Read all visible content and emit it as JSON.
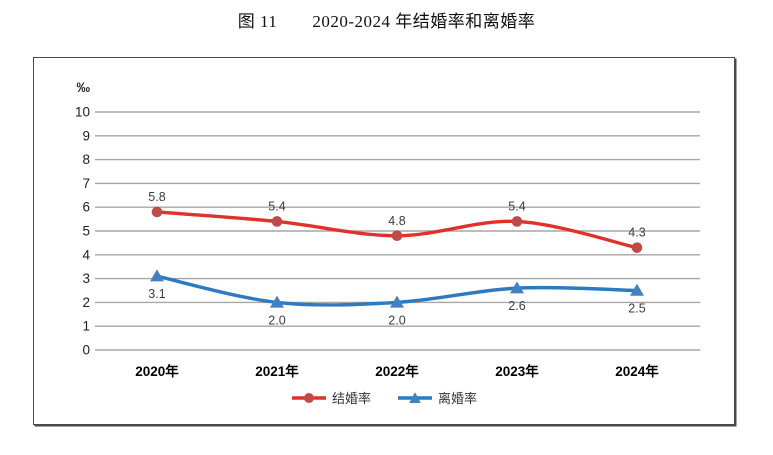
{
  "page": {
    "title": "图 11　　2020-2024 年结婚率和离婚率"
  },
  "chart_data": {
    "type": "line",
    "title": "图 11 2020-2024 年结婚率和离婚率",
    "unit_label": "‰",
    "categories": [
      "2020年",
      "2021年",
      "2022年",
      "2023年",
      "2024年"
    ],
    "series": [
      {
        "name": "结婚率",
        "values": [
          5.8,
          5.4,
          4.8,
          5.4,
          4.3
        ],
        "color": "#e0312b",
        "marker_color": "#bf4b48",
        "marker": "circle",
        "label_position": "above"
      },
      {
        "name": "离婚率",
        "values": [
          3.1,
          2.0,
          2.0,
          2.6,
          2.5
        ],
        "color": "#2e7ac0",
        "marker_color": "#4480bd",
        "marker": "triangle",
        "label_position": "below"
      }
    ],
    "ylim": [
      0,
      10
    ],
    "ytick_step": 1,
    "grid": "horizontal",
    "gridline_color": "#a6a6a6",
    "legend_position": "bottom-inside",
    "smooth_lines": true
  }
}
